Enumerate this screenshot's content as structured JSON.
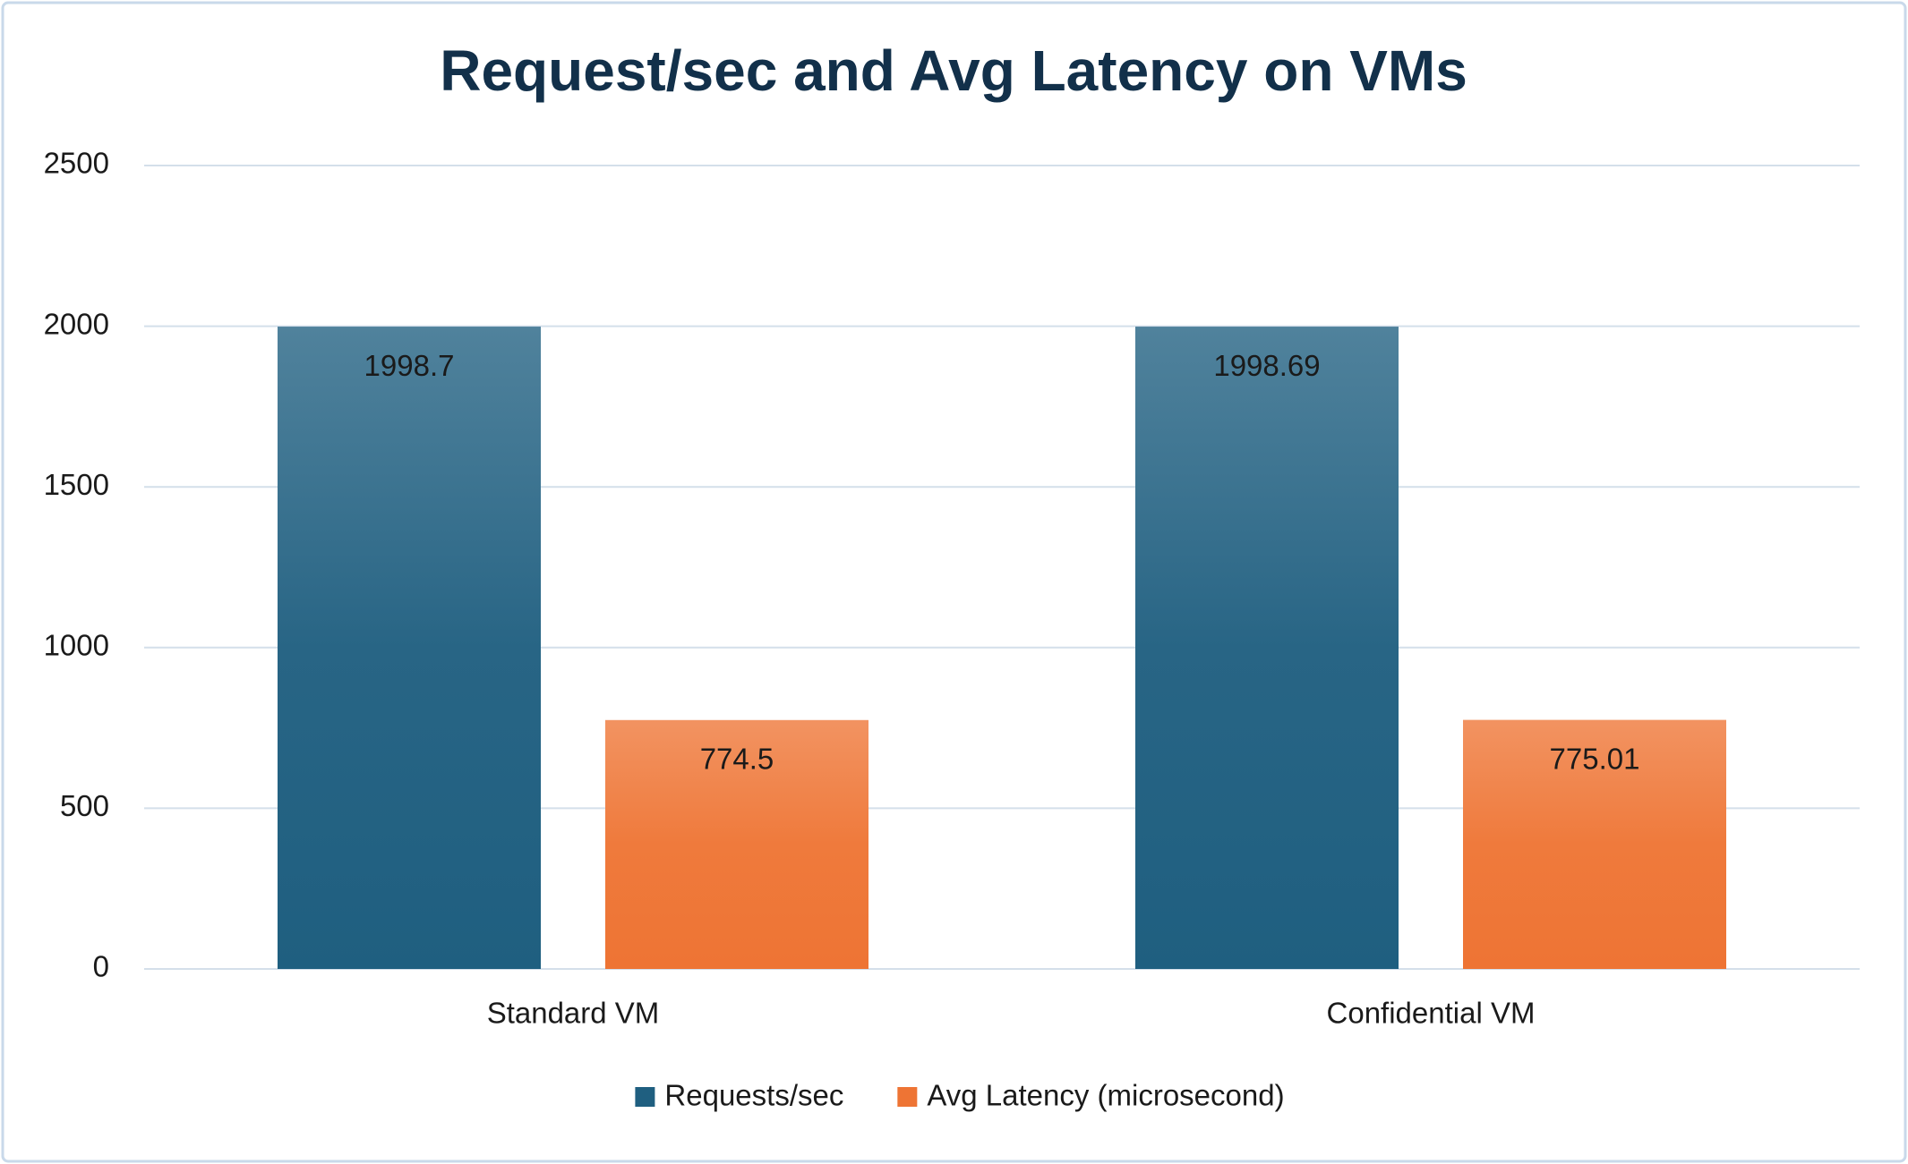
{
  "chart_data": {
    "type": "bar",
    "title": "Request/sec and Avg Latency on VMs",
    "categories": [
      "Standard VM",
      "Confidential VM"
    ],
    "series": [
      {
        "name": "Requests/sec",
        "color": "#1f5f80",
        "values": [
          1998.7,
          1998.69
        ]
      },
      {
        "name": "Avg Latency (microsecond)",
        "color": "#ee7434",
        "values": [
          774.5,
          775.01
        ]
      }
    ],
    "ylim": [
      0,
      2500
    ],
    "yticks": [
      0,
      500,
      1000,
      1500,
      2000,
      2500
    ],
    "grid": true,
    "legend": "bottom"
  }
}
